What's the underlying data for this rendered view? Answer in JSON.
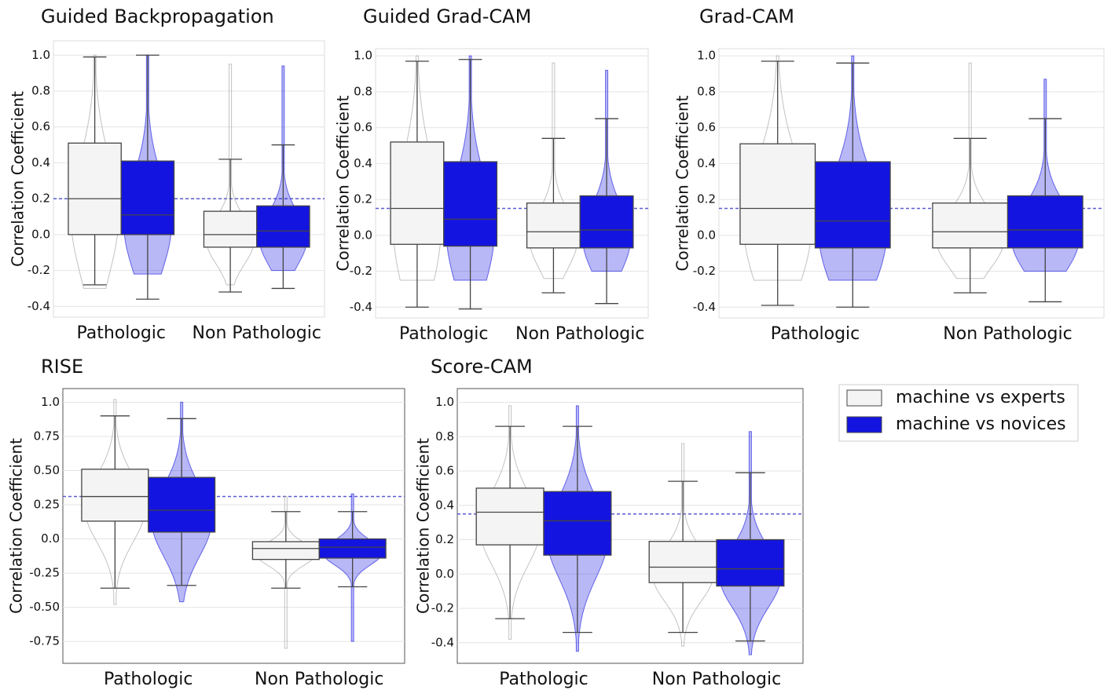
{
  "chart_data": [
    {
      "type": "box",
      "title": "Guided Backpropagation",
      "ylabel": "Correlation Coefficient",
      "categories": [
        "Pathologic",
        "Non Pathologic"
      ],
      "series": [
        {
          "values": [
            [
              -0.28,
              0.0,
              0.2,
              0.51,
              0.99
            ],
            [
              -0.32,
              -0.07,
              0.0,
              0.13,
              0.42
            ]
          ],
          "violin": [
            [
              -0.3,
              1.0
            ],
            [
              -0.28,
              0.95
            ]
          ]
        },
        {
          "values": [
            [
              -0.36,
              0.0,
              0.11,
              0.41,
              1.0
            ],
            [
              -0.3,
              -0.07,
              0.02,
              0.16,
              0.5
            ]
          ],
          "violin": [
            [
              -0.22,
              1.0
            ],
            [
              -0.2,
              0.94
            ]
          ]
        }
      ],
      "ylim": [
        -0.46,
        1.08
      ],
      "yticks": [
        -0.4,
        -0.2,
        {
          "value": 0,
          "label": "0.0"
        },
        0.2,
        0.4,
        0.6,
        0.8,
        {
          "value": 1,
          "label": "1.0"
        }
      ],
      "ref_line": 0.2
    },
    {
      "type": "box",
      "title": "Guided Grad-CAM",
      "ylabel": "Correlation Coefficient",
      "categories": [
        "Pathologic",
        "Non Pathologic"
      ],
      "series": [
        {
          "values": [
            [
              -0.4,
              -0.05,
              0.15,
              0.52,
              0.97
            ],
            [
              -0.32,
              -0.07,
              0.02,
              0.18,
              0.54
            ]
          ],
          "violin": [
            [
              -0.25,
              1.0
            ],
            [
              -0.24,
              0.96
            ]
          ]
        },
        {
          "values": [
            [
              -0.41,
              -0.06,
              0.09,
              0.41,
              0.98
            ],
            [
              -0.38,
              -0.07,
              0.03,
              0.22,
              0.65
            ]
          ],
          "violin": [
            [
              -0.25,
              1.0
            ],
            [
              -0.2,
              0.92
            ]
          ]
        }
      ],
      "ylim": [
        -0.46,
        1.04
      ],
      "yticks": [
        -0.4,
        -0.2,
        {
          "value": 0,
          "label": "0.0"
        },
        0.2,
        0.4,
        0.6,
        0.8,
        {
          "value": 1,
          "label": "1.0"
        }
      ],
      "ref_line": 0.15
    },
    {
      "type": "box",
      "title": "Grad-CAM",
      "ylabel": "Correlation Coefficient",
      "categories": [
        "Pathologic",
        "Non Pathologic"
      ],
      "series": [
        {
          "values": [
            [
              -0.39,
              -0.05,
              0.15,
              0.51,
              0.97
            ],
            [
              -0.32,
              -0.07,
              0.02,
              0.18,
              0.54
            ]
          ],
          "violin": [
            [
              -0.25,
              1.0
            ],
            [
              -0.24,
              0.96
            ]
          ]
        },
        {
          "values": [
            [
              -0.4,
              -0.07,
              0.08,
              0.41,
              0.96
            ],
            [
              -0.37,
              -0.07,
              0.03,
              0.22,
              0.65
            ]
          ],
          "violin": [
            [
              -0.25,
              1.0
            ],
            [
              -0.2,
              0.87
            ]
          ]
        }
      ],
      "ylim": [
        -0.46,
        1.04
      ],
      "yticks": [
        -0.4,
        -0.2,
        {
          "value": 0,
          "label": "0.0"
        },
        0.2,
        0.4,
        0.6,
        0.8,
        {
          "value": 1,
          "label": "1.0"
        }
      ],
      "ref_line": 0.15
    },
    {
      "type": "box",
      "title": "RISE",
      "ylabel": "Correlation Coefficient",
      "categories": [
        "Pathologic",
        "Non Pathologic"
      ],
      "series": [
        {
          "values": [
            [
              -0.36,
              0.13,
              0.31,
              0.51,
              0.9
            ],
            [
              -0.36,
              -0.15,
              -0.07,
              -0.02,
              0.2
            ]
          ],
          "violin": [
            [
              -0.48,
              1.02
            ],
            [
              -0.8,
              0.31
            ]
          ]
        },
        {
          "values": [
            [
              -0.34,
              0.05,
              0.21,
              0.45,
              0.88
            ],
            [
              -0.35,
              -0.14,
              -0.06,
              0.0,
              0.2
            ]
          ],
          "violin": [
            [
              -0.46,
              1.0
            ],
            [
              -0.75,
              0.33
            ]
          ]
        }
      ],
      "ylim": [
        -0.91,
        1.1
      ],
      "yticks": [
        -0.75,
        {
          "value": -0.5,
          "label": "-0.50"
        },
        -0.25,
        {
          "value": 0,
          "label": "0.0"
        },
        0.25,
        {
          "value": 0.5,
          "label": "0.50"
        },
        0.75,
        {
          "value": 1,
          "label": "1.0"
        }
      ],
      "ref_line": 0.31
    },
    {
      "type": "box",
      "title": "Score-CAM",
      "ylabel": "Correlation Coefficient",
      "categories": [
        "Pathologic",
        "Non Pathologic"
      ],
      "series": [
        {
          "values": [
            [
              -0.26,
              0.17,
              0.36,
              0.5,
              0.86
            ],
            [
              -0.34,
              -0.05,
              0.04,
              0.19,
              0.54
            ]
          ],
          "violin": [
            [
              -0.38,
              0.98
            ],
            [
              -0.42,
              0.76
            ]
          ]
        },
        {
          "values": [
            [
              -0.34,
              0.11,
              0.31,
              0.48,
              0.86
            ],
            [
              -0.39,
              -0.07,
              0.03,
              0.2,
              0.59
            ]
          ],
          "violin": [
            [
              -0.45,
              0.98
            ],
            [
              -0.47,
              0.83
            ]
          ]
        }
      ],
      "ylim": [
        -0.52,
        1.08
      ],
      "yticks": [
        -0.4,
        -0.2,
        {
          "value": 0,
          "label": "0.0"
        },
        0.2,
        0.4,
        0.6,
        0.8,
        {
          "value": 1,
          "label": "1.0"
        }
      ],
      "ref_line": 0.35
    }
  ],
  "legend": [
    {
      "name": "machine vs experts",
      "color": "#f4f4f4"
    },
    {
      "name": "machine vs novices",
      "color": "#1414e0"
    }
  ]
}
